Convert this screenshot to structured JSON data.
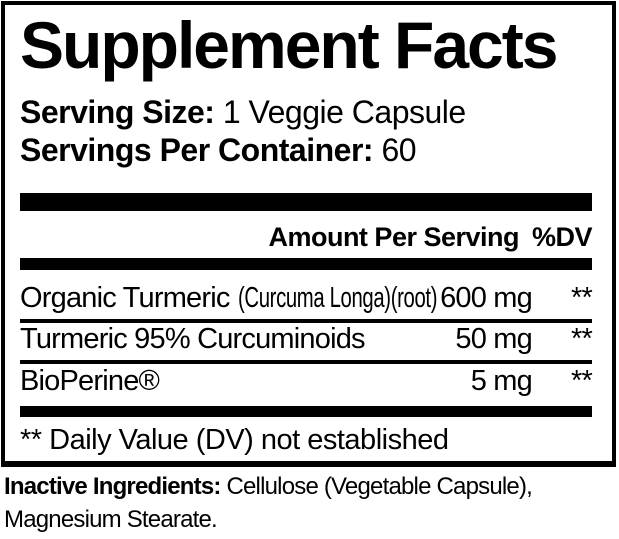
{
  "panel": {
    "title": "Supplement Facts",
    "serving_size": {
      "label": "Serving Size:",
      "value": "1 Veggie Capsule"
    },
    "servings_per_container": {
      "label": "Servings Per Container:",
      "value": "60"
    },
    "columns": {
      "amount": "Amount Per Serving",
      "dv": "%DV"
    },
    "rows": [
      {
        "name": "Organic Turmeric",
        "detail": "(Curcuma Longa)(root)",
        "amount": "600 mg",
        "dv": "**"
      },
      {
        "name": "Turmeric 95% Curcuminoids",
        "detail": "",
        "amount": "50 mg",
        "dv": "**"
      },
      {
        "name": "BioPerine®",
        "detail": "",
        "amount": "5 mg",
        "dv": "**"
      }
    ],
    "footnote": "** Daily Value (DV) not established"
  },
  "inactive": {
    "label": "Inactive Ingredients:",
    "line1": "Cellulose (Vegetable Capsule),",
    "line2": "Magnesium Stearate."
  },
  "colors": {
    "ink": "#000000",
    "background": "#ffffff"
  }
}
